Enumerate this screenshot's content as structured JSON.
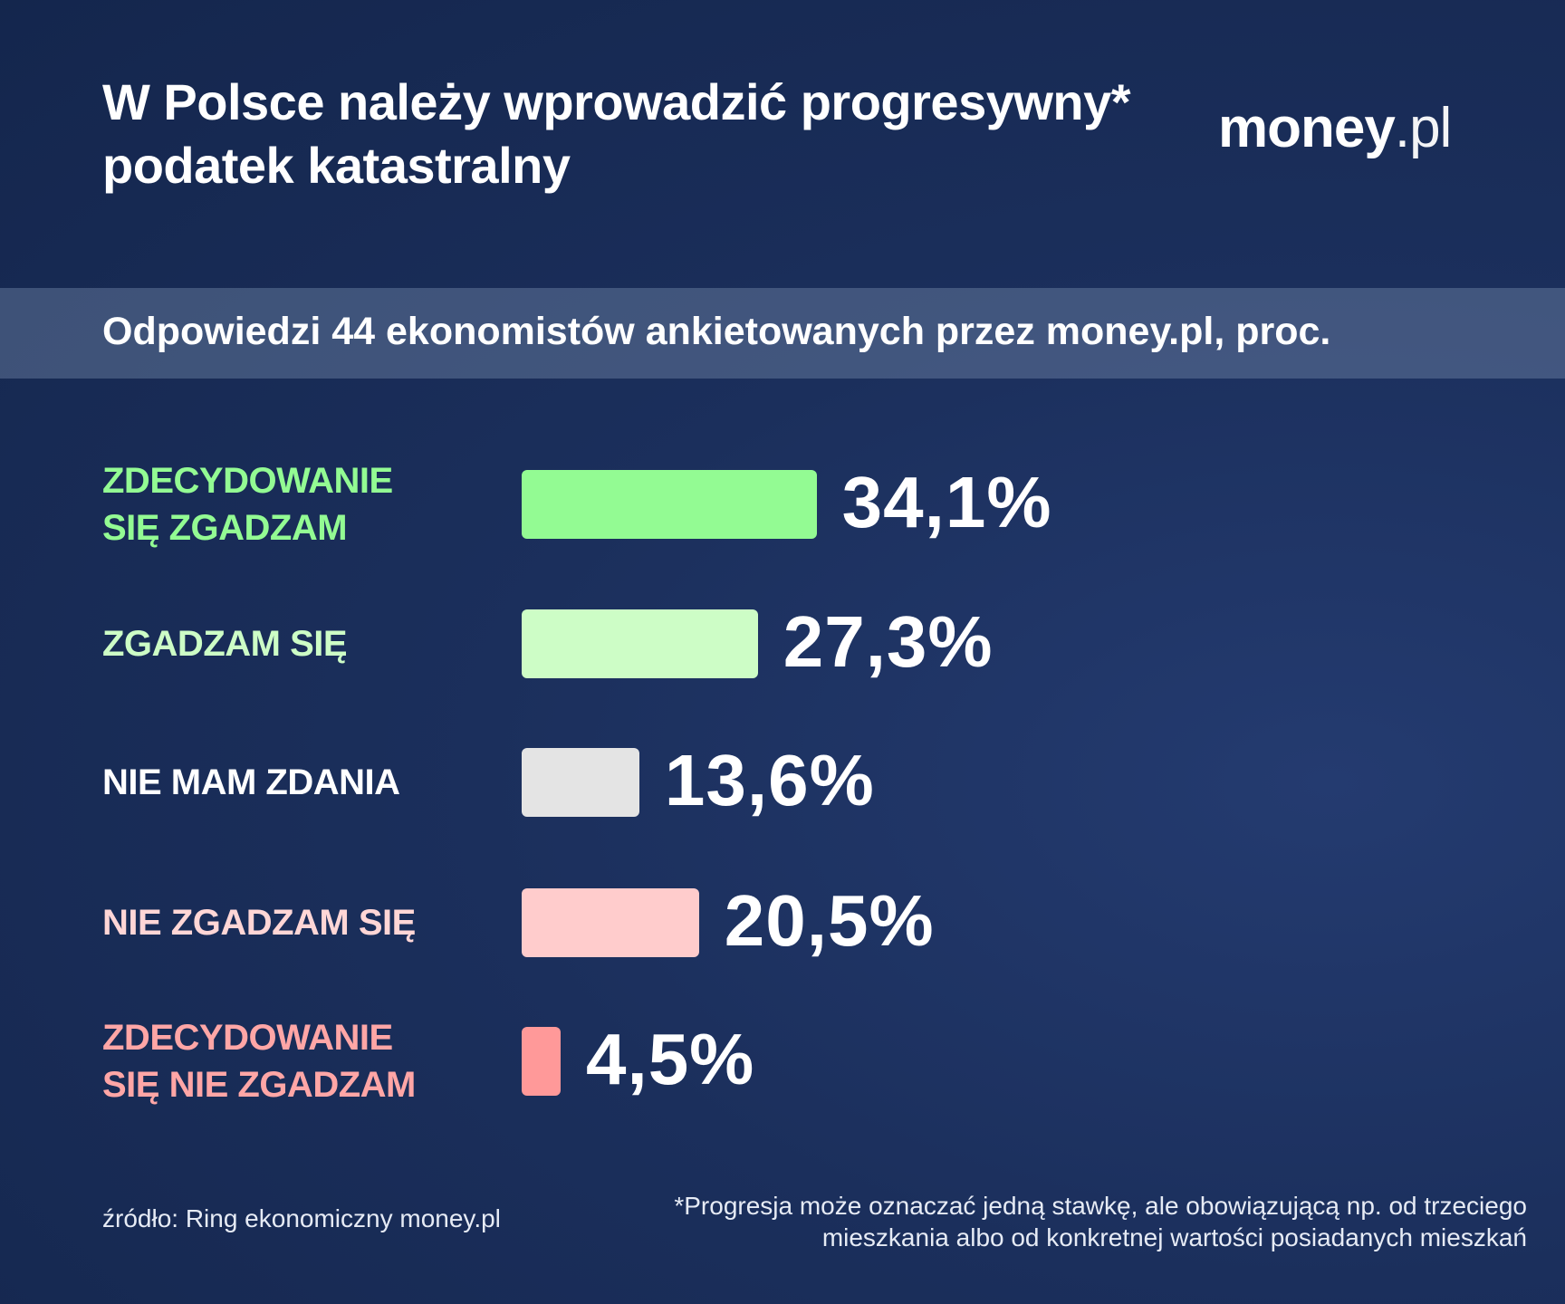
{
  "title": "W Polsce należy wprowadzić progresywny* podatek katastralny",
  "logo": {
    "bold": "money",
    "thin": ".pl"
  },
  "subtitle": "Odpowiedzi 44 ekonomistów ankietowanych przez money.pl, proc.",
  "chart_data": {
    "type": "bar",
    "orientation": "horizontal",
    "categories": [
      "ZDECYDOWANIE\nSIĘ ZGADZAM",
      "ZGADZAM SIĘ",
      "NIE MAM ZDANIA",
      "NIE ZGADZAM SIĘ",
      "ZDECYDOWANIE\nSIĘ NIE ZGADZAM"
    ],
    "values": [
      34.1,
      27.3,
      13.6,
      20.5,
      4.5
    ],
    "value_labels": [
      "34,1%",
      "27,3%",
      "13,6%",
      "20,5%",
      "4,5%"
    ],
    "bar_colors": [
      "#93fb93",
      "#cdfdc6",
      "#e4e4e4",
      "#ffcccc",
      "#ff9999"
    ],
    "label_colors": [
      "#93fb93",
      "#cdfdc6",
      "#ffffff",
      "#ffd6d6",
      "#ffa6a6"
    ],
    "grid": false,
    "legend": "none"
  },
  "footer": {
    "source": "źródło: Ring ekonomiczny money.pl",
    "footnote": "*Progresja może oznaczać jedną stawkę, ale obowiązującą np. od trzeciego mieszkania albo od konkretnej wartości posiadanych mieszkań"
  }
}
